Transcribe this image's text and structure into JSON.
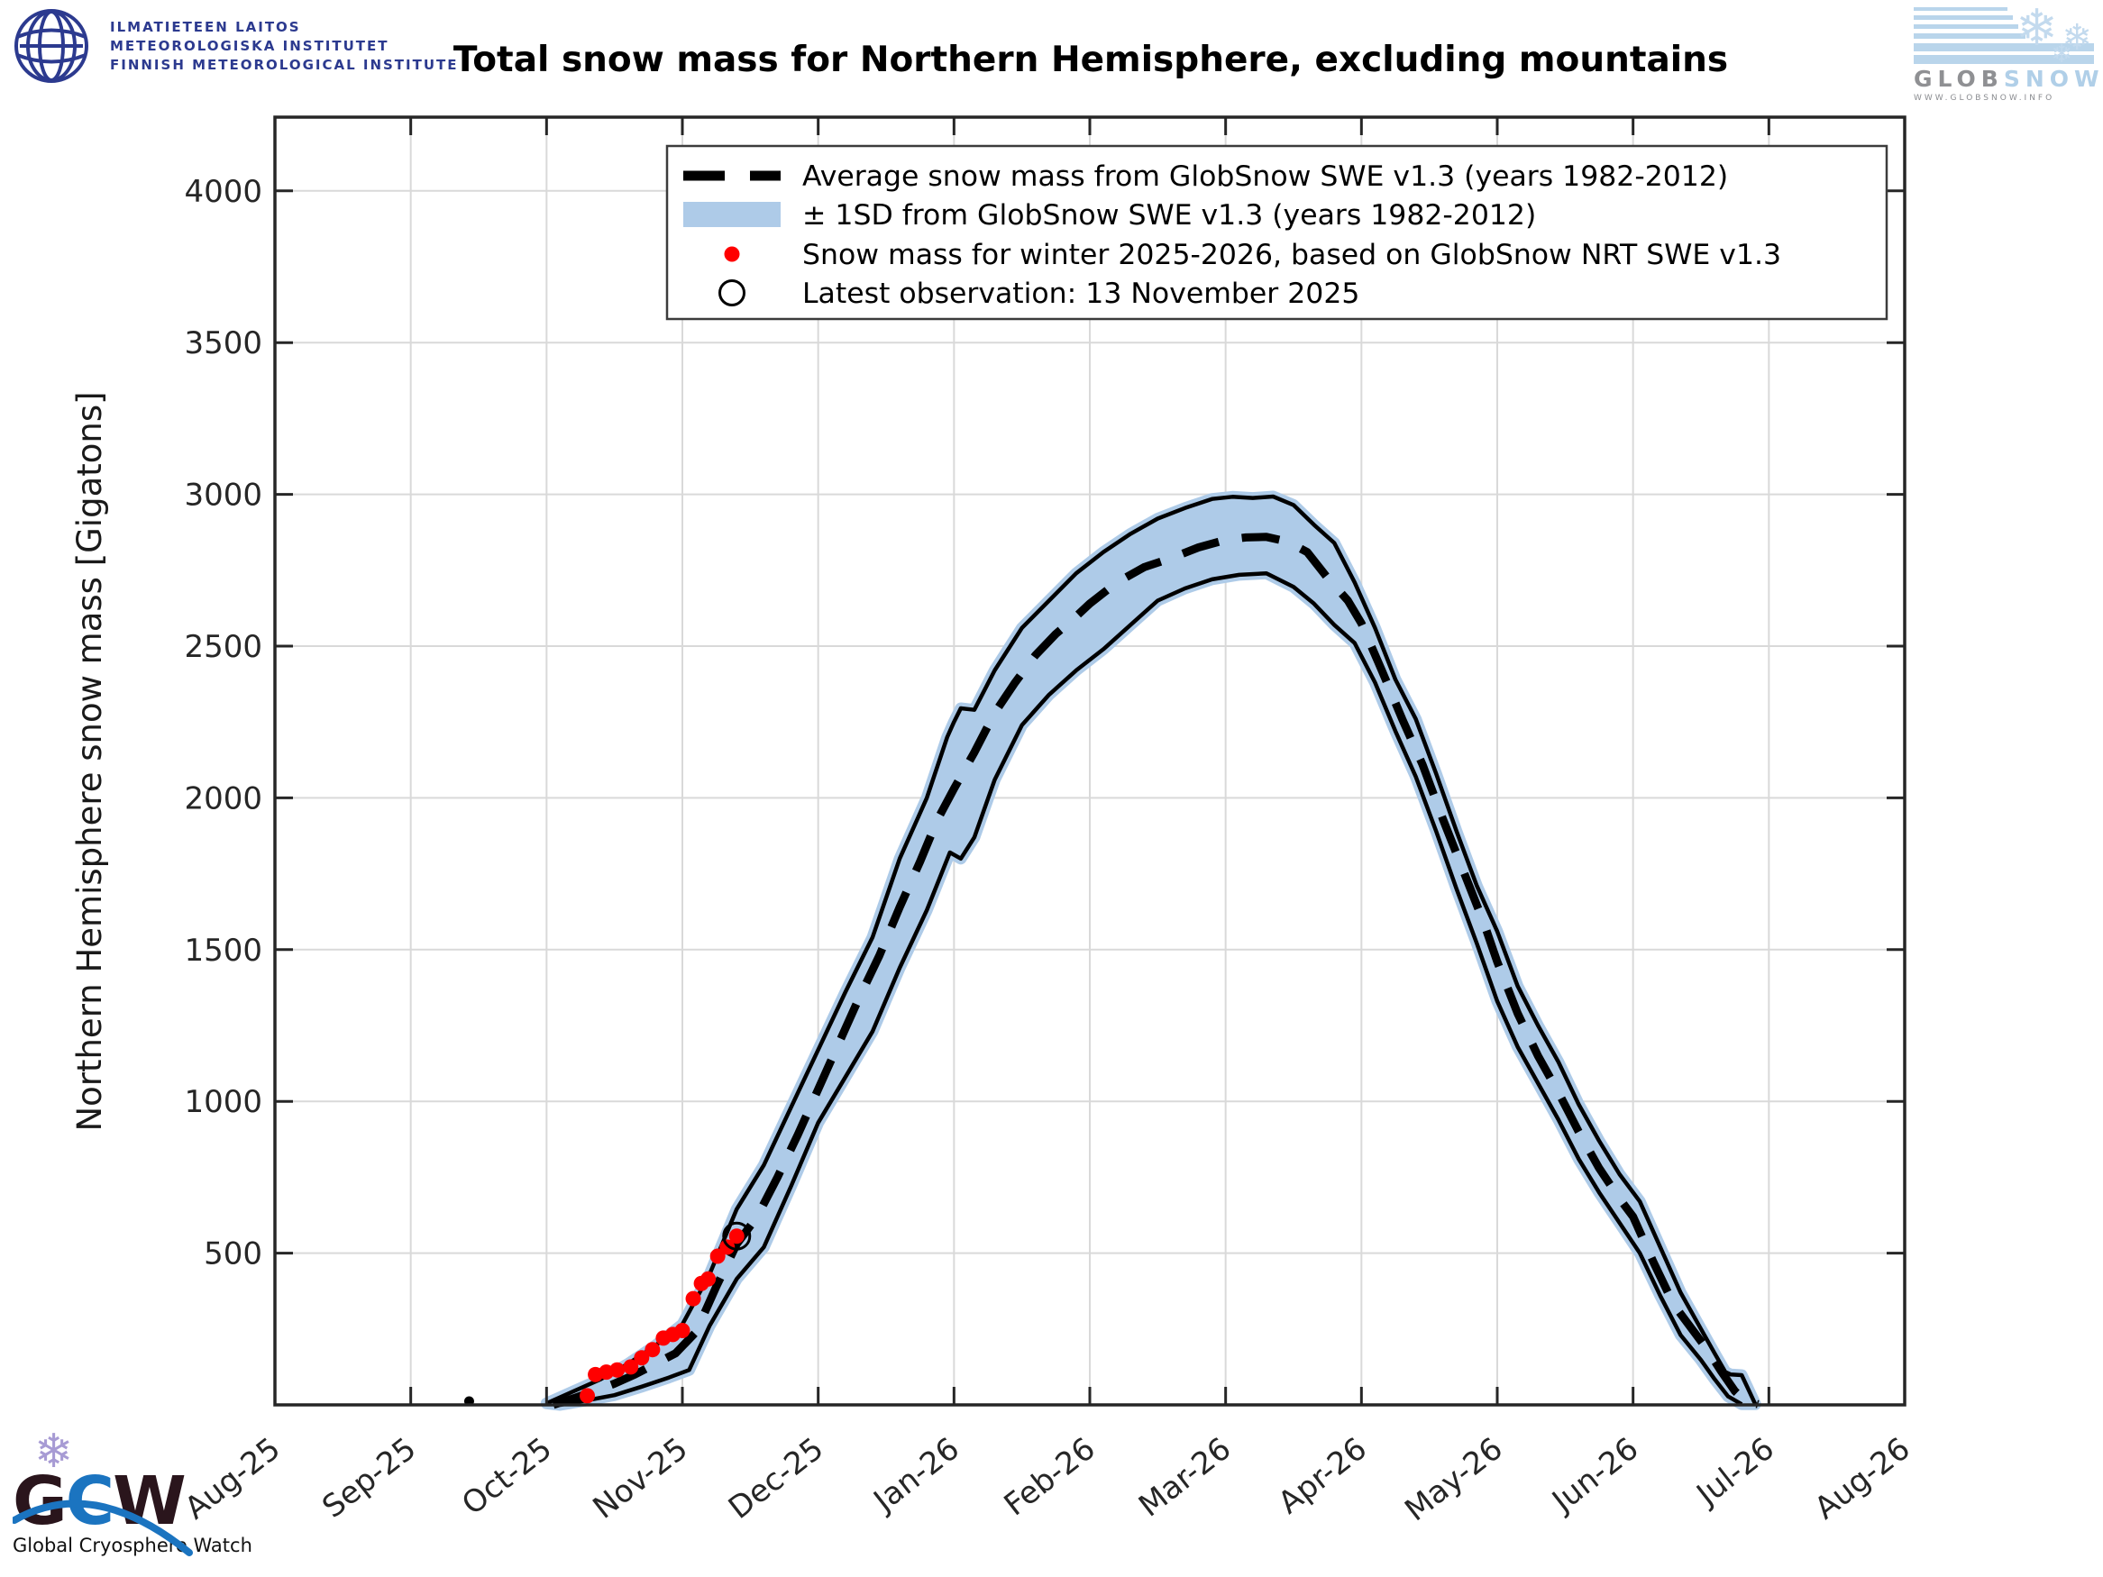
{
  "header": {
    "fmi_logo": {
      "line1": "ILMATIETEEN LAITOS",
      "line2": "METEOROLOGISKA INSTITUTET",
      "line3": "FINNISH METEOROLOGICAL INSTITUTE"
    },
    "globsnow_logo": {
      "glob": "GLOB",
      "snow": "SNOW",
      "url": "WWW.GLOBSNOW.INFO"
    }
  },
  "footer": {
    "gcw_logo": {
      "g": "G",
      "c": "C",
      "w": "W",
      "caption": "Global Cryosphere Watch"
    }
  },
  "chart_data": {
    "type": "line",
    "title": "Total snow mass for Northern Hemisphere, excluding mountains",
    "xlabel": "",
    "ylabel": "Northern Hemisphere snow mass [Gigatons]",
    "x_tick_labels": [
      "Aug-25",
      "Sep-25",
      "Oct-25",
      "Nov-25",
      "Dec-25",
      "Jan-26",
      "Feb-26",
      "Mar-26",
      "Apr-26",
      "May-26",
      "Jun-26",
      "Jul-26",
      "Aug-26"
    ],
    "y_ticks": [
      500,
      1000,
      1500,
      2000,
      2500,
      3000,
      3500,
      4000
    ],
    "ylim": [
      0,
      4150
    ],
    "xlim_months": [
      0,
      12
    ],
    "grid": true,
    "legend_position": "upper center",
    "legend": [
      {
        "marker": "dashed-line",
        "label": "Average snow mass from GlobSnow SWE v1.3 (years 1982-2012)"
      },
      {
        "marker": "band-patch",
        "label": "± 1SD from GlobSnow SWE v1.3 (years 1982-2012)"
      },
      {
        "marker": "red-dot",
        "label": "Snow mass for winter 2025-2026, based on GlobSnow NRT SWE v1.3"
      },
      {
        "marker": "open-circle",
        "label": "Latest observation: 13 November 2025"
      }
    ],
    "series": [
      {
        "name": "Average snow mass from GlobSnow SWE v1.3 (years 1982-2012)",
        "style": "dashed-black",
        "points": [
          [
            2.05,
            0
          ],
          [
            2.2,
            22
          ],
          [
            2.35,
            45
          ],
          [
            2.5,
            70
          ],
          [
            2.65,
            100
          ],
          [
            2.8,
            135
          ],
          [
            2.95,
            170
          ],
          [
            3.1,
            240
          ],
          [
            3.25,
            390
          ],
          [
            3.4,
            530
          ],
          [
            3.55,
            620
          ],
          [
            3.7,
            750
          ],
          [
            3.85,
            890
          ],
          [
            4.0,
            1040
          ],
          [
            4.15,
            1190
          ],
          [
            4.3,
            1340
          ],
          [
            4.45,
            1480
          ],
          [
            4.6,
            1640
          ],
          [
            4.75,
            1790
          ],
          [
            4.88,
            1930
          ],
          [
            5.0,
            2030
          ],
          [
            5.15,
            2150
          ],
          [
            5.3,
            2280
          ],
          [
            5.45,
            2380
          ],
          [
            5.6,
            2470
          ],
          [
            5.75,
            2540
          ],
          [
            5.88,
            2590
          ],
          [
            6.0,
            2640
          ],
          [
            6.2,
            2710
          ],
          [
            6.4,
            2760
          ],
          [
            6.6,
            2790
          ],
          [
            6.8,
            2825
          ],
          [
            7.0,
            2850
          ],
          [
            7.15,
            2858
          ],
          [
            7.3,
            2860
          ],
          [
            7.45,
            2845
          ],
          [
            7.6,
            2810
          ],
          [
            7.75,
            2725
          ],
          [
            7.9,
            2650
          ],
          [
            8.0,
            2575
          ],
          [
            8.15,
            2420
          ],
          [
            8.3,
            2260
          ],
          [
            8.45,
            2110
          ],
          [
            8.6,
            1930
          ],
          [
            8.75,
            1760
          ],
          [
            8.9,
            1590
          ],
          [
            9.0,
            1460
          ],
          [
            9.15,
            1290
          ],
          [
            9.3,
            1150
          ],
          [
            9.45,
            1030
          ],
          [
            9.6,
            900
          ],
          [
            9.75,
            780
          ],
          [
            9.9,
            680
          ],
          [
            10.0,
            620
          ],
          [
            10.15,
            470
          ],
          [
            10.3,
            330
          ],
          [
            10.45,
            240
          ],
          [
            10.55,
            180
          ],
          [
            10.65,
            110
          ],
          [
            10.75,
            45
          ],
          [
            10.82,
            15
          ],
          [
            10.92,
            2
          ]
        ]
      },
      {
        "name": "+1SD envelope",
        "style": "band-upper-edge",
        "points": [
          [
            2.0,
            5
          ],
          [
            2.2,
            45
          ],
          [
            2.4,
            85
          ],
          [
            2.6,
            135
          ],
          [
            2.8,
            195
          ],
          [
            3.0,
            265
          ],
          [
            3.2,
            430
          ],
          [
            3.4,
            645
          ],
          [
            3.6,
            790
          ],
          [
            3.8,
            980
          ],
          [
            4.0,
            1170
          ],
          [
            4.2,
            1360
          ],
          [
            4.4,
            1540
          ],
          [
            4.6,
            1800
          ],
          [
            4.8,
            2000
          ],
          [
            4.95,
            2200
          ],
          [
            5.0,
            2250
          ],
          [
            5.05,
            2295
          ],
          [
            5.15,
            2290
          ],
          [
            5.3,
            2420
          ],
          [
            5.5,
            2560
          ],
          [
            5.7,
            2650
          ],
          [
            5.9,
            2740
          ],
          [
            6.1,
            2810
          ],
          [
            6.3,
            2870
          ],
          [
            6.5,
            2920
          ],
          [
            6.7,
            2955
          ],
          [
            6.9,
            2985
          ],
          [
            7.05,
            2992
          ],
          [
            7.2,
            2988
          ],
          [
            7.35,
            2993
          ],
          [
            7.5,
            2965
          ],
          [
            7.65,
            2900
          ],
          [
            7.8,
            2840
          ],
          [
            7.95,
            2710
          ],
          [
            8.1,
            2560
          ],
          [
            8.25,
            2390
          ],
          [
            8.4,
            2260
          ],
          [
            8.55,
            2080
          ],
          [
            8.7,
            1890
          ],
          [
            8.85,
            1710
          ],
          [
            9.0,
            1560
          ],
          [
            9.15,
            1380
          ],
          [
            9.3,
            1250
          ],
          [
            9.45,
            1130
          ],
          [
            9.6,
            990
          ],
          [
            9.75,
            870
          ],
          [
            9.9,
            760
          ],
          [
            10.05,
            670
          ],
          [
            10.2,
            520
          ],
          [
            10.35,
            370
          ],
          [
            10.5,
            250
          ],
          [
            10.6,
            170
          ],
          [
            10.68,
            108
          ],
          [
            10.72,
            100
          ],
          [
            10.8,
            98
          ],
          [
            10.84,
            60
          ],
          [
            10.9,
            2
          ]
        ]
      },
      {
        "name": "-1SD envelope",
        "style": "band-lower-edge",
        "points": [
          [
            2.1,
            0
          ],
          [
            2.3,
            15
          ],
          [
            2.5,
            32
          ],
          [
            2.7,
            60
          ],
          [
            2.9,
            90
          ],
          [
            3.05,
            115
          ],
          [
            3.2,
            260
          ],
          [
            3.4,
            415
          ],
          [
            3.6,
            520
          ],
          [
            3.8,
            720
          ],
          [
            4.0,
            930
          ],
          [
            4.2,
            1080
          ],
          [
            4.4,
            1230
          ],
          [
            4.6,
            1440
          ],
          [
            4.8,
            1630
          ],
          [
            4.97,
            1820
          ],
          [
            5.05,
            1800
          ],
          [
            5.15,
            1870
          ],
          [
            5.3,
            2060
          ],
          [
            5.5,
            2240
          ],
          [
            5.7,
            2340
          ],
          [
            5.9,
            2420
          ],
          [
            6.1,
            2490
          ],
          [
            6.3,
            2570
          ],
          [
            6.5,
            2650
          ],
          [
            6.7,
            2690
          ],
          [
            6.9,
            2720
          ],
          [
            7.1,
            2735
          ],
          [
            7.3,
            2740
          ],
          [
            7.5,
            2695
          ],
          [
            7.65,
            2640
          ],
          [
            7.8,
            2570
          ],
          [
            7.95,
            2510
          ],
          [
            8.1,
            2380
          ],
          [
            8.25,
            2220
          ],
          [
            8.4,
            2070
          ],
          [
            8.55,
            1890
          ],
          [
            8.7,
            1700
          ],
          [
            8.85,
            1520
          ],
          [
            9.0,
            1330
          ],
          [
            9.15,
            1180
          ],
          [
            9.3,
            1060
          ],
          [
            9.45,
            940
          ],
          [
            9.6,
            810
          ],
          [
            9.75,
            700
          ],
          [
            9.9,
            600
          ],
          [
            10.05,
            500
          ],
          [
            10.2,
            360
          ],
          [
            10.35,
            230
          ],
          [
            10.5,
            148
          ],
          [
            10.6,
            85
          ],
          [
            10.7,
            28
          ],
          [
            10.8,
            2
          ]
        ]
      },
      {
        "name": "Snow mass for winter 2025-2026, based on GlobSnow NRT SWE v1.3",
        "style": "red-dots",
        "points": [
          [
            2.3,
            30
          ],
          [
            2.36,
            100
          ],
          [
            2.44,
            108
          ],
          [
            2.52,
            115
          ],
          [
            2.62,
            125
          ],
          [
            2.7,
            155
          ],
          [
            2.78,
            182
          ],
          [
            2.86,
            220
          ],
          [
            2.93,
            232
          ],
          [
            3.0,
            245
          ],
          [
            3.08,
            350
          ],
          [
            3.14,
            400
          ],
          [
            3.19,
            415
          ],
          [
            3.26,
            490
          ],
          [
            3.33,
            520
          ],
          [
            3.4,
            556
          ]
        ]
      }
    ],
    "average_september_blip": {
      "month": 1.43,
      "value": 12
    },
    "latest_observation": {
      "month": 3.4,
      "value": 556,
      "date": "13 November 2025"
    },
    "colors": {
      "band_fill": "#aecbe8",
      "band_edge": "#000000",
      "average_line": "#000000",
      "current_winter": "#ff0000",
      "latest_marker_edge": "#000000",
      "grid": "#d9d9d9",
      "axis_frame": "#262626",
      "tick_label": "#262626"
    }
  }
}
